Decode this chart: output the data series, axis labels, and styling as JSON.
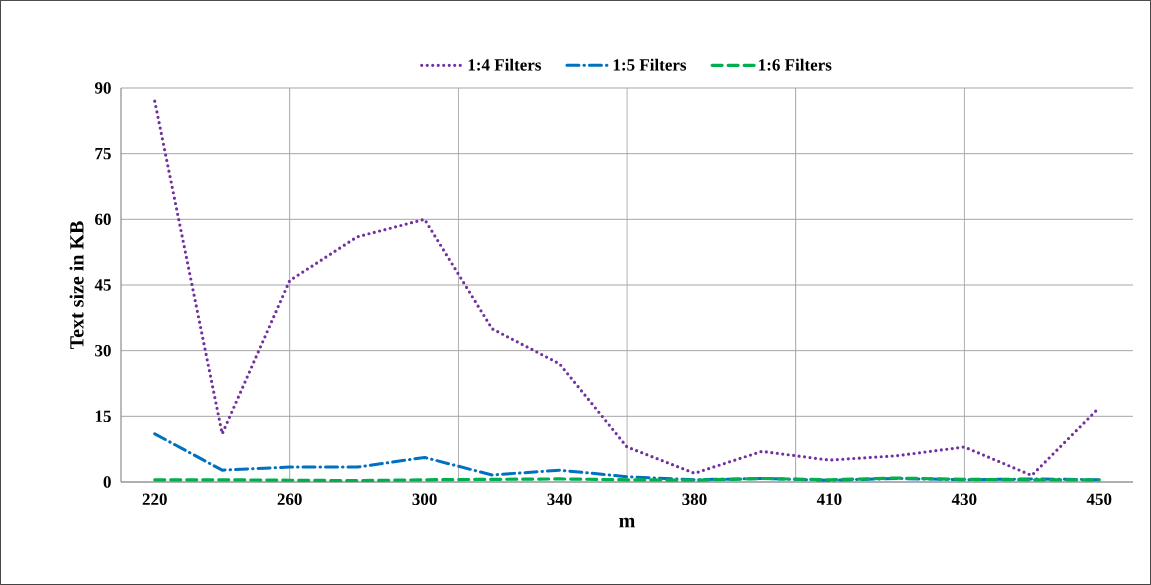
{
  "chart_data": {
    "type": "line",
    "xlabel": "m",
    "ylabel": "Text size in KB",
    "categories": [
      "220",
      null,
      "260",
      null,
      "300",
      null,
      "340",
      null,
      "380",
      null,
      "410",
      null,
      "430",
      null,
      "450"
    ],
    "series": [
      {
        "name": "1:4 Filters",
        "color": "#7030a0",
        "line_style": "dotted",
        "values": [
          87,
          11,
          46,
          56,
          60,
          35,
          27,
          8,
          2,
          7,
          5,
          6,
          8,
          1.5,
          17
        ]
      },
      {
        "name": "1:5 Filters",
        "color": "#0070c0",
        "line_style": "dashdot",
        "values": [
          11,
          2.7,
          3.4,
          3.4,
          5.6,
          1.6,
          2.7,
          1.2,
          0.5,
          0.8,
          0.4,
          0.8,
          0.5,
          0.7,
          0.5
        ]
      },
      {
        "name": "1:6 Filters",
        "color": "#00b050",
        "line_style": "dashed",
        "values": [
          0.5,
          0.5,
          0.4,
          0.3,
          0.5,
          0.6,
          0.7,
          0.5,
          0.4,
          0.8,
          0.5,
          0.9,
          0.6,
          0.5,
          0.5
        ]
      }
    ],
    "ylim": [
      0,
      90
    ],
    "yticks": [
      0,
      15,
      30,
      45,
      60,
      75,
      90
    ],
    "grid": true,
    "legend": "top"
  }
}
